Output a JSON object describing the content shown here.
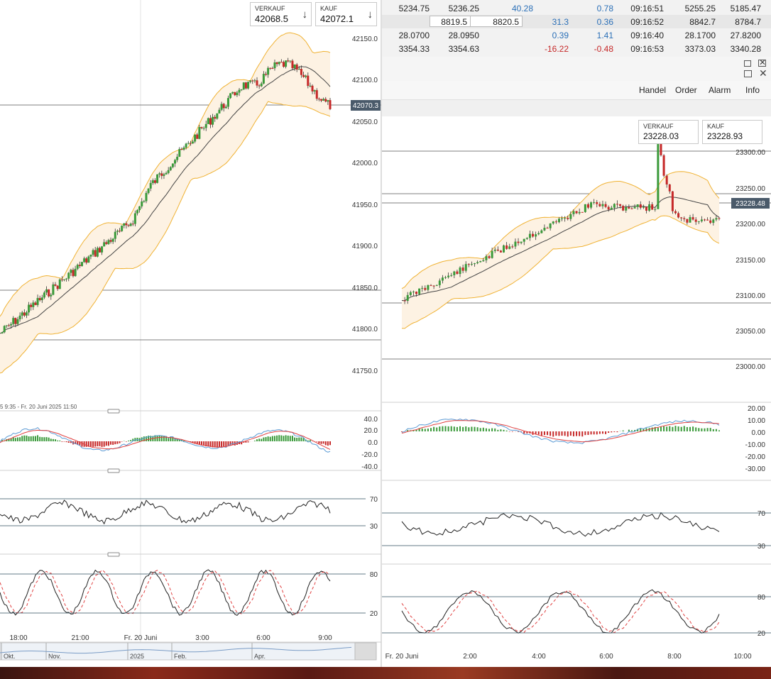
{
  "left_chart": {
    "price_box_sell": {
      "label": "VERKAUF",
      "value": "42068.5"
    },
    "price_box_buy": {
      "label": "KAUF",
      "value": "42072.1"
    },
    "y_axis_labels": [
      "42150.0",
      "42100.0",
      "42050.0",
      "42000.0",
      "41950.0",
      "41900.0",
      "41850.0",
      "41800.0",
      "41750.0"
    ],
    "current_price_tag": "42070.3",
    "range_text": "5 9:35 - Fr. 20 Juni 2025 11:50",
    "macd_labels": [
      "40.0",
      "20.0",
      "0.0",
      "-20.0",
      "-40.0"
    ],
    "rsi_labels": [
      "70",
      "30"
    ],
    "stoch_labels": [
      "80",
      "20"
    ],
    "x_axis_labels": [
      "18:00",
      "21:00",
      "Fr. 20 Juni",
      "3:00",
      "6:00",
      "9:00"
    ],
    "navigator_labels": [
      "Okt.",
      "Nov.",
      "2025",
      "Feb.",
      "Apr."
    ]
  },
  "quotes": {
    "rows": [
      [
        "5234.75",
        "5236.25",
        "40.28",
        "0.78",
        "09:16:51",
        "5255.25",
        "5185.47"
      ],
      [
        "8819.5",
        "8820.5",
        "31.3",
        "0.36",
        "09:16:52",
        "8842.7",
        "8784.7"
      ],
      [
        "28.0700",
        "28.0950",
        "0.39",
        "1.41",
        "09:16:40",
        "28.1700",
        "27.8200"
      ],
      [
        "3354.33",
        "3354.63",
        "-16.22",
        "-0.48",
        "09:16:53",
        "3373.03",
        "3340.28"
      ]
    ]
  },
  "window2": {
    "menu": [
      "Handel",
      "Order",
      "Alarm",
      "Info"
    ],
    "price_box_sell": {
      "label": "VERKAUF",
      "value": "23228.03"
    },
    "price_box_buy": {
      "label": "KAUF",
      "value": "23228.93"
    },
    "y_axis_labels": [
      "23300.00",
      "23250.00",
      "23200.00",
      "23150.00",
      "23100.00",
      "23050.00",
      "23000.00"
    ],
    "current_price_tag": "23228.48",
    "macd_labels": [
      "20.00",
      "10.00",
      "0.00",
      "-10.00",
      "-20.00",
      "-30.00"
    ],
    "rsi_labels": [
      "70",
      "30"
    ],
    "stoch_labels": [
      "80",
      "20"
    ],
    "x_axis_labels": [
      "Fr. 20 Juni",
      "2:00",
      "4:00",
      "6:00",
      "8:00",
      "10:00"
    ]
  },
  "colors": {
    "up": "#3a9a3a",
    "down": "#c62828",
    "band": "#f0b233",
    "band_fill": "#fdf2e3",
    "macd_line": "#5b9bd5",
    "signal_line": "#e04040",
    "price_tag": "#4a5a6a"
  }
}
